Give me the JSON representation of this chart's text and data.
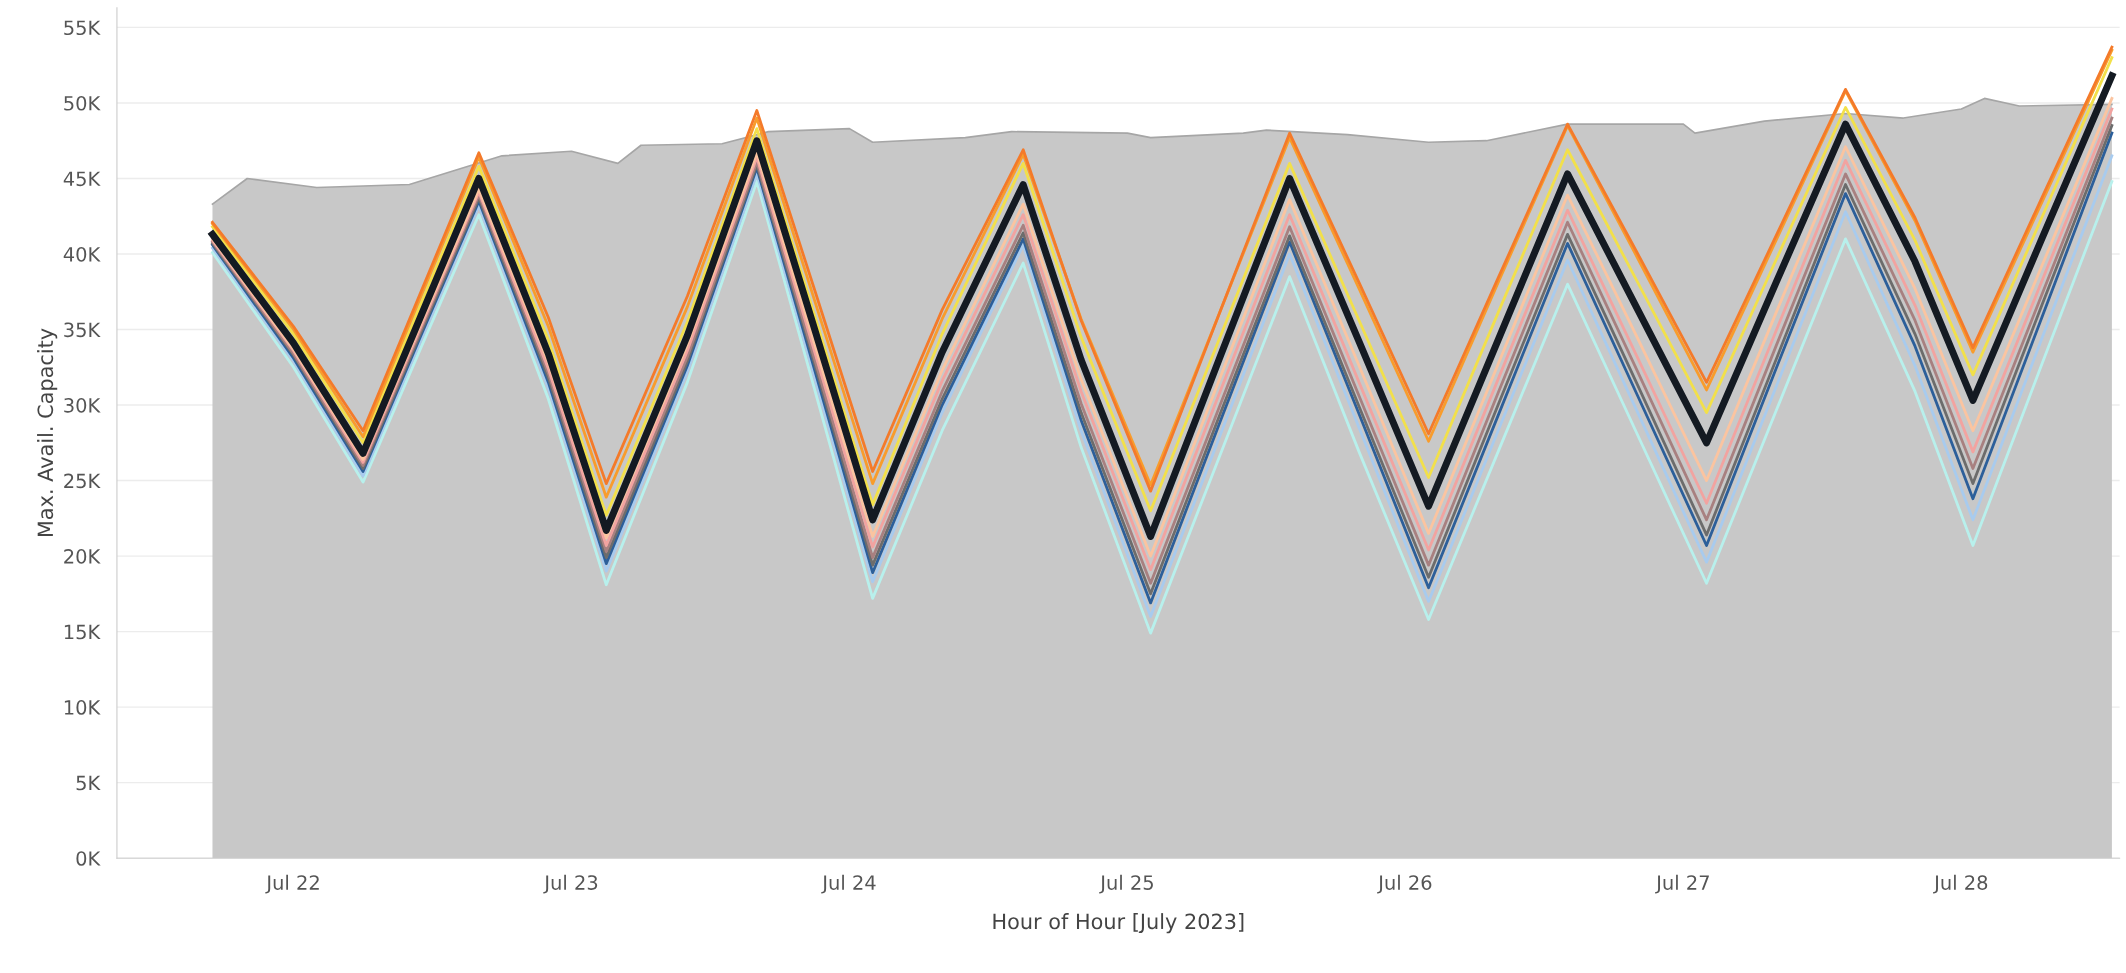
{
  "chart_data": {
    "type": "line",
    "xlabel": "Hour of Hour [July 2023]",
    "ylabel": "Max. Avail. Capacity",
    "x": [
      "2023-07-21T17:00",
      "2023-07-22T00:00",
      "2023-07-22T06:00",
      "2023-07-22T11:00",
      "2023-07-22T16:00",
      "2023-07-22T22:00",
      "2023-07-23T03:00",
      "2023-07-23T10:00",
      "2023-07-23T16:00",
      "2023-07-23T21:00",
      "2023-07-24T02:00",
      "2023-07-24T08:00",
      "2023-07-24T15:00",
      "2023-07-24T20:00",
      "2023-07-25T02:00",
      "2023-07-25T08:00",
      "2023-07-25T14:00",
      "2023-07-25T20:00",
      "2023-07-26T02:00",
      "2023-07-26T08:00",
      "2023-07-26T14:00",
      "2023-07-26T20:00",
      "2023-07-27T02:00",
      "2023-07-27T08:00",
      "2023-07-27T14:00",
      "2023-07-27T20:00",
      "2023-07-28T01:00",
      "2023-07-28T07:00",
      "2023-07-28T13:00"
    ],
    "series": [
      {
        "type": "area",
        "color": "#c8c8c8",
        "x": [
          "2023-07-21T17:00",
          "2023-07-21T20:00",
          "2023-07-22T02:00",
          "2023-07-22T10:00",
          "2023-07-22T18:00",
          "2023-07-23T00:00",
          "2023-07-23T04:00",
          "2023-07-23T06:00",
          "2023-07-23T13:00",
          "2023-07-23T17:00",
          "2023-07-24T00:00",
          "2023-07-24T02:00",
          "2023-07-24T10:00",
          "2023-07-24T14:00",
          "2023-07-25T00:00",
          "2023-07-25T02:00",
          "2023-07-25T10:00",
          "2023-07-25T12:00",
          "2023-07-25T19:00",
          "2023-07-26T02:00",
          "2023-07-26T07:00",
          "2023-07-26T14:00",
          "2023-07-27T00:00",
          "2023-07-27T01:00",
          "2023-07-27T07:00",
          "2023-07-27T14:00",
          "2023-07-27T19:00",
          "2023-07-28T00:00",
          "2023-07-28T02:00",
          "2023-07-28T05:00",
          "2023-07-28T13:00"
        ],
        "values": [
          43300,
          45000,
          44400,
          44600,
          46500,
          46800,
          46000,
          47200,
          47300,
          48100,
          48300,
          47400,
          47700,
          48100,
          48000,
          47700,
          48000,
          48200,
          47900,
          47400,
          47500,
          48600,
          48600,
          48000,
          48800,
          49300,
          49000,
          49600,
          50300,
          49800,
          49900
        ]
      },
      {
        "color": "#b8f0ec",
        "values": [
          40100,
          32500,
          24900,
          33800,
          42600,
          30400,
          18100,
          31500,
          44800,
          31000,
          17200,
          28300,
          39400,
          27200,
          14900,
          26700,
          38500,
          26900,
          15800,
          26900,
          38000,
          28100,
          18200,
          29600,
          41000,
          30900,
          20700,
          32800,
          44800
        ]
      },
      {
        "color": "#a8cbee",
        "values": [
          40400,
          32900,
          25300,
          34300,
          43200,
          31100,
          19000,
          32200,
          45300,
          31800,
          18300,
          29500,
          40600,
          28300,
          16000,
          28000,
          40000,
          28500,
          17000,
          28300,
          39600,
          29600,
          19600,
          31200,
          42800,
          32600,
          22400,
          34500,
          46500
        ]
      },
      {
        "color": "#2c5f9a",
        "values": [
          40600,
          33100,
          25600,
          34600,
          43500,
          31500,
          19500,
          32600,
          45700,
          32300,
          18900,
          30000,
          41000,
          29000,
          16900,
          28900,
          40800,
          29400,
          17900,
          29300,
          40700,
          30700,
          20700,
          32400,
          44000,
          33900,
          23800,
          35900,
          48000
        ]
      },
      {
        "color": "#6c6c6c",
        "values": [
          40700,
          33300,
          25800,
          34800,
          43700,
          31800,
          19900,
          32900,
          45900,
          32700,
          19400,
          30400,
          41400,
          29500,
          17500,
          29400,
          41200,
          29900,
          18600,
          30000,
          41300,
          31400,
          21400,
          33000,
          44600,
          34700,
          24800,
          36700,
          48500
        ]
      },
      {
        "color": "#a88080",
        "values": [
          40800,
          33400,
          26000,
          35000,
          43900,
          32100,
          20300,
          33200,
          46100,
          33000,
          19900,
          30900,
          41900,
          30100,
          18200,
          30000,
          41800,
          30600,
          19400,
          30800,
          42100,
          32300,
          22400,
          33900,
          45300,
          35600,
          25800,
          37400,
          49000
        ]
      },
      {
        "color": "#f2a3a0",
        "values": [
          40900,
          33600,
          26200,
          35200,
          44100,
          32400,
          20700,
          33600,
          46400,
          33500,
          20600,
          31600,
          42600,
          30900,
          19100,
          30900,
          42600,
          31500,
          20400,
          31700,
          42900,
          33200,
          23500,
          34900,
          46200,
          36600,
          26900,
          38300,
          49600
        ]
      },
      {
        "color": "#fbc4a0",
        "values": [
          41000,
          33700,
          26400,
          35400,
          44300,
          32800,
          21200,
          34000,
          46700,
          34000,
          21300,
          32300,
          43300,
          31700,
          20000,
          31800,
          43600,
          32600,
          21500,
          32700,
          43900,
          34500,
          25000,
          36100,
          47100,
          37700,
          28300,
          39300,
          50300
        ]
      },
      {
        "color": "#f2e04a",
        "values": [
          41800,
          34700,
          27500,
          36700,
          45800,
          34300,
          22700,
          35500,
          48300,
          35900,
          23400,
          34700,
          46000,
          34500,
          23000,
          34500,
          46000,
          35600,
          25200,
          36100,
          46900,
          38200,
          29500,
          39600,
          49700,
          40900,
          32000,
          42500,
          53000
        ]
      },
      {
        "color": "#f89c2c",
        "values": [
          42000,
          35000,
          27900,
          37200,
          46400,
          35200,
          23900,
          36500,
          49000,
          36900,
          24800,
          35700,
          46600,
          35700,
          24700,
          36200,
          47700,
          37700,
          27600,
          38100,
          48500,
          39800,
          31000,
          40900,
          50800,
          42200,
          33500,
          43500,
          53500
        ]
      },
      {
        "color": "#f47a2a",
        "values": [
          42100,
          35200,
          28300,
          37500,
          46700,
          35800,
          24800,
          37200,
          49500,
          37600,
          25600,
          36300,
          46900,
          35600,
          24300,
          36200,
          48000,
          38100,
          28100,
          38400,
          48600,
          40100,
          31500,
          41200,
          50900,
          42400,
          33800,
          43800,
          53700
        ]
      },
      {
        "color": "#141a22",
        "values": [
          41300,
          34100,
          26800,
          35900,
          45000,
          33400,
          21700,
          34600,
          47500,
          35000,
          22400,
          33500,
          44600,
          33000,
          21300,
          33200,
          45000,
          34200,
          23300,
          34300,
          45300,
          36400,
          27500,
          38100,
          48600,
          39500,
          30300,
          41100,
          51800
        ]
      }
    ],
    "xlim": [
      "2023-07-21T08:45",
      "2023-07-28T13:40"
    ],
    "xticks": [
      {
        "value": "2023-07-22",
        "label": "Jul 22"
      },
      {
        "value": "2023-07-23",
        "label": "Jul 23"
      },
      {
        "value": "2023-07-24",
        "label": "Jul 24"
      },
      {
        "value": "2023-07-25",
        "label": "Jul 25"
      },
      {
        "value": "2023-07-26",
        "label": "Jul 26"
      },
      {
        "value": "2023-07-27",
        "label": "Jul 27"
      },
      {
        "value": "2023-07-28",
        "label": "Jul 28"
      }
    ],
    "ylim": [
      0,
      56300
    ],
    "yticks": [
      {
        "value": 0,
        "label": "0K"
      },
      {
        "value": 5000,
        "label": "5K"
      },
      {
        "value": 10000,
        "label": "10K"
      },
      {
        "value": 15000,
        "label": "15K"
      },
      {
        "value": 20000,
        "label": "20K"
      },
      {
        "value": 25000,
        "label": "25K"
      },
      {
        "value": 30000,
        "label": "30K"
      },
      {
        "value": 35000,
        "label": "35K"
      },
      {
        "value": 40000,
        "label": "40K"
      },
      {
        "value": 45000,
        "label": "45K"
      },
      {
        "value": 50000,
        "label": "50K"
      },
      {
        "value": 55000,
        "label": "55K"
      }
    ],
    "grid": "y",
    "legend": false
  }
}
